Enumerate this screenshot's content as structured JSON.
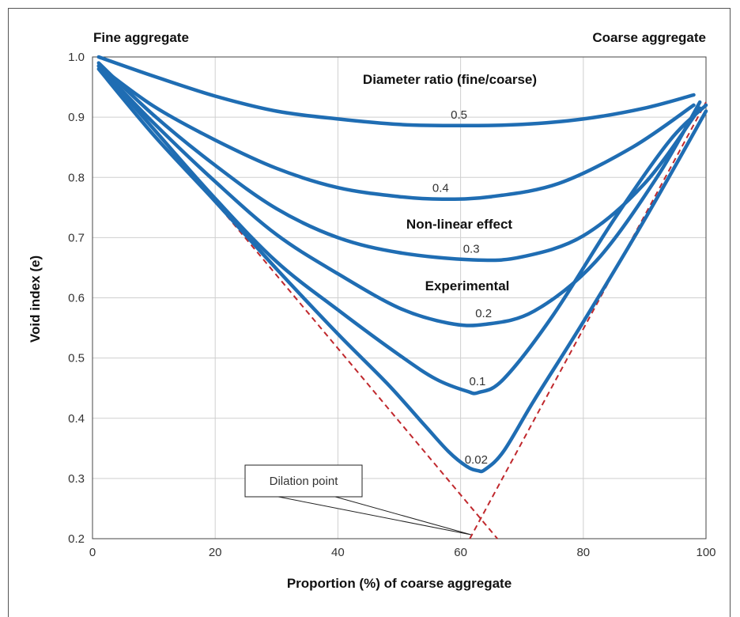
{
  "chart_data": {
    "type": "line",
    "title": "",
    "xlabel": "Proportion (%) of coarse aggregate",
    "ylabel": "Void index (e)",
    "xlim": [
      0,
      100
    ],
    "ylim": [
      0.2,
      1.0
    ],
    "x_ticks": [
      "0",
      "20",
      "40",
      "60",
      "80",
      "100"
    ],
    "y_ticks": [
      "0.2",
      "0.3",
      "0.4",
      "0.5",
      "0.6",
      "0.7",
      "0.8",
      "0.9",
      "1.0"
    ],
    "grid": true,
    "series_color": "#1f6db3",
    "reference_color": "#c0282d",
    "corner_labels": {
      "left": "Fine aggregate",
      "right": "Coarse aggregate"
    },
    "annotations": {
      "legend_title": "Diameter ratio (fine/coarse)",
      "nonlinear": "Non-linear effect",
      "experimental": "Experimental",
      "dilation": "Dilation point"
    },
    "series": [
      {
        "name": "0.5",
        "x": [
          1,
          10,
          20,
          30,
          40,
          50,
          60,
          70,
          80,
          90,
          98
        ],
        "y": [
          1.0,
          0.968,
          0.935,
          0.91,
          0.897,
          0.888,
          0.886,
          0.888,
          0.897,
          0.915,
          0.937
        ]
      },
      {
        "name": "0.4",
        "x": [
          1,
          10,
          20,
          30,
          40,
          50,
          57,
          65,
          76,
          88,
          98
        ],
        "y": [
          0.985,
          0.918,
          0.862,
          0.815,
          0.783,
          0.768,
          0.764,
          0.768,
          0.79,
          0.85,
          0.92
        ]
      },
      {
        "name": "0.3",
        "x": [
          1,
          10,
          20,
          30,
          40,
          50,
          62,
          70,
          80,
          90,
          99
        ],
        "y": [
          0.99,
          0.903,
          0.82,
          0.748,
          0.7,
          0.675,
          0.663,
          0.668,
          0.703,
          0.79,
          0.915
        ]
      },
      {
        "name": "0.2",
        "x": [
          1,
          10,
          20,
          30,
          40,
          50,
          58,
          64,
          72,
          82,
          92,
          99
        ],
        "y": [
          0.985,
          0.89,
          0.793,
          0.705,
          0.64,
          0.583,
          0.558,
          0.556,
          0.578,
          0.66,
          0.8,
          0.925
        ]
      },
      {
        "name": "0.1",
        "x": [
          1,
          10,
          20,
          30,
          40,
          50,
          56,
          61,
          63,
          67,
          75,
          85,
          94,
          100
        ],
        "y": [
          0.985,
          0.88,
          0.765,
          0.66,
          0.58,
          0.505,
          0.465,
          0.445,
          0.443,
          0.465,
          0.57,
          0.73,
          0.86,
          0.92
        ]
      },
      {
        "name": "0.02",
        "x": [
          1,
          10,
          20,
          30,
          40,
          48,
          54,
          58,
          61,
          62.8,
          64,
          67,
          72,
          80,
          90,
          100
        ],
        "y": [
          0.98,
          0.87,
          0.76,
          0.648,
          0.54,
          0.458,
          0.39,
          0.345,
          0.32,
          0.313,
          0.315,
          0.345,
          0.43,
          0.56,
          0.73,
          0.91
        ]
      }
    ],
    "reference_lines": [
      {
        "x": [
          1,
          66
        ],
        "y": [
          0.99,
          0.2
        ]
      },
      {
        "x": [
          61.5,
          100
        ],
        "y": [
          0.2,
          0.925
        ]
      }
    ]
  }
}
